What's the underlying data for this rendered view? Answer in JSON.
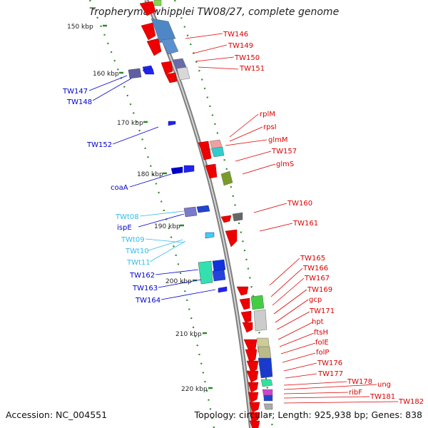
{
  "title": "Tropheryma whipplei TW08/27, complete genome",
  "footer": {
    "accession": "Accession: NC_004551",
    "summary": "Topology: circular; Length: 925,938 bp; Genes: 838"
  },
  "colors": {
    "backbone": "#8f8f8f",
    "forward_label": "#0000cc",
    "rna_label": "#33bbee",
    "reverse_label": "#dd0000",
    "tick": "#2a8a2a"
  },
  "ticks": [
    "150 kbp",
    "160 kbp",
    "170 kbp",
    "180 kbp",
    "190 kbp",
    "200 kbp",
    "210 kbp",
    "220 kbp"
  ],
  "forward_labels": [
    "TW147",
    "TW148",
    "TW152",
    "coaA",
    "ispE",
    "TW162",
    "TW163",
    "TW164"
  ],
  "rna_labels": [
    "TWt08",
    "TWt09",
    "TWt10",
    "TWt11"
  ],
  "reverse_labels": [
    "TW146",
    "TW149",
    "TW150",
    "TW151",
    "rplM",
    "rpsI",
    "glmM",
    "TW157",
    "glmS",
    "TW160",
    "TW161",
    "TW165",
    "TW166",
    "TW167",
    "TW169",
    "gcp",
    "hpt",
    "TW171",
    "ftsH",
    "folE",
    "folP",
    "TW176",
    "TW177",
    "TW178",
    "ung",
    "ribF",
    "TW181",
    "TW182"
  ]
}
